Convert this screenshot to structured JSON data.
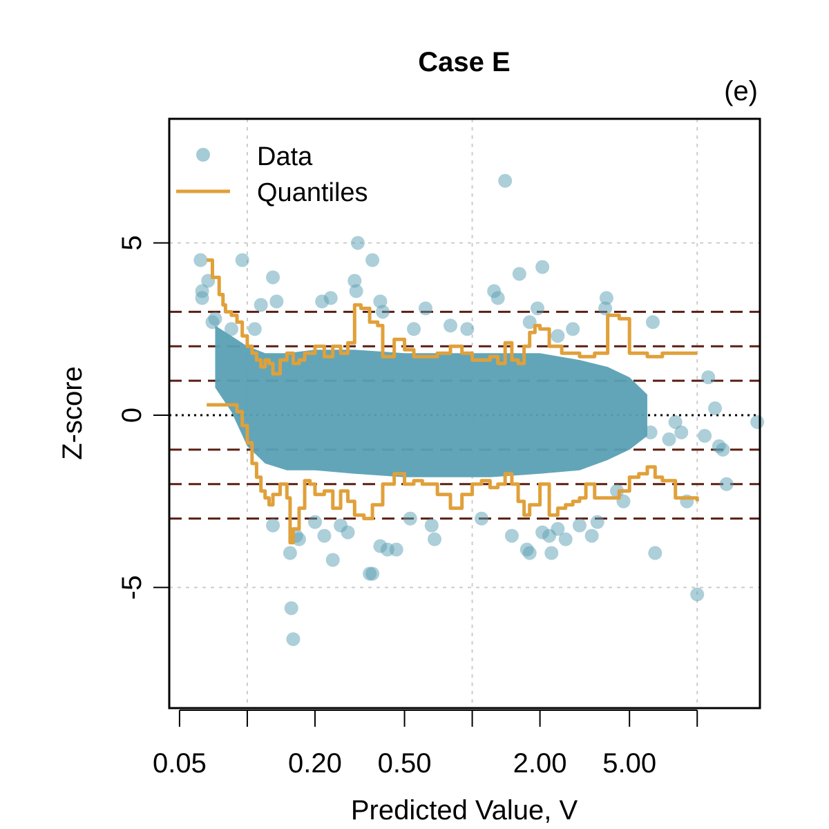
{
  "chart_data": {
    "type": "scatter",
    "title": "Case E",
    "panel_label": "(e)",
    "xlabel": "Predicted Value, V",
    "ylabel": "Z-score",
    "x_scale": "log",
    "xlim": [
      0.045,
      19
    ],
    "ylim": [
      -8.5,
      8.6
    ],
    "x_ticks": [
      {
        "value": 0.05,
        "label": "0.05"
      },
      {
        "value": 0.1,
        "label": ""
      },
      {
        "value": 0.2,
        "label": "0.20"
      },
      {
        "value": 0.5,
        "label": "0.50"
      },
      {
        "value": 1,
        "label": ""
      },
      {
        "value": 2,
        "label": "2.00"
      },
      {
        "value": 5,
        "label": "5.00"
      },
      {
        "value": 10,
        "label": ""
      }
    ],
    "y_ticks": [
      {
        "value": -5,
        "label": "-5"
      },
      {
        "value": 0,
        "label": "0"
      },
      {
        "value": 5,
        "label": "5"
      }
    ],
    "grid_x": [
      0.1,
      1,
      10
    ],
    "grid_y": [
      -5,
      5
    ],
    "reference_lines": {
      "zero_dotted": 0,
      "dashed": [
        -3,
        -2,
        -1,
        1,
        2,
        3
      ],
      "dashed_color": "#5a1e12"
    },
    "grid": true,
    "legend": {
      "position": "top-left",
      "entries": [
        {
          "label": "Data",
          "kind": "point",
          "color": "#5aa0b4"
        },
        {
          "label": "Quantiles",
          "kind": "line",
          "color": "#e0a03a"
        }
      ]
    },
    "colors": {
      "data": "#5aa0b4",
      "quantiles": "#e0a03a"
    },
    "series": [
      {
        "name": "Data",
        "kind": "points",
        "points": [
          [
            0.062,
            4.5
          ],
          [
            0.063,
            3.6
          ],
          [
            0.063,
            3.4
          ],
          [
            0.067,
            3.9
          ],
          [
            0.07,
            2.7
          ],
          [
            0.072,
            2.8
          ],
          [
            0.085,
            2.5
          ],
          [
            0.095,
            4.5
          ],
          [
            0.13,
            4.0
          ],
          [
            0.115,
            3.2
          ],
          [
            0.135,
            3.3
          ],
          [
            0.108,
            2.5
          ],
          [
            0.215,
            3.3
          ],
          [
            0.235,
            3.4
          ],
          [
            0.31,
            5.0
          ],
          [
            0.3,
            3.9
          ],
          [
            0.305,
            3.6
          ],
          [
            0.36,
            4.5
          ],
          [
            0.39,
            3.3
          ],
          [
            0.4,
            3.0
          ],
          [
            0.62,
            3.1
          ],
          [
            1.25,
            3.6
          ],
          [
            1.3,
            3.4
          ],
          [
            1.4,
            6.8
          ],
          [
            1.62,
            4.1
          ],
          [
            2.05,
            4.3
          ],
          [
            1.95,
            3.1
          ],
          [
            3.95,
            3.4
          ],
          [
            3.9,
            3.1
          ],
          [
            6.35,
            2.7
          ],
          [
            11.2,
            1.1
          ],
          [
            12.0,
            0.2
          ],
          [
            18.5,
            -0.2
          ],
          [
            13.0,
            -1.0
          ],
          [
            12.5,
            -0.9
          ],
          [
            10.8,
            -0.6
          ],
          [
            8.5,
            -0.5
          ],
          [
            8.0,
            -0.2
          ],
          [
            6.2,
            -0.5
          ],
          [
            7.5,
            -0.7
          ],
          [
            13.5,
            -2.0
          ],
          [
            0.13,
            -3.2
          ],
          [
            0.155,
            -4.0
          ],
          [
            0.157,
            -5.6
          ],
          [
            0.16,
            -6.5
          ],
          [
            0.17,
            -3.6
          ],
          [
            0.165,
            -3.5
          ],
          [
            0.2,
            -3.1
          ],
          [
            0.22,
            -3.5
          ],
          [
            0.24,
            -4.2
          ],
          [
            0.26,
            -3.2
          ],
          [
            0.28,
            -3.4
          ],
          [
            0.35,
            -4.6
          ],
          [
            0.36,
            -4.6
          ],
          [
            0.39,
            -3.8
          ],
          [
            0.42,
            -3.9
          ],
          [
            0.46,
            -3.9
          ],
          [
            0.53,
            -3.0
          ],
          [
            0.66,
            -3.2
          ],
          [
            0.68,
            -3.6
          ],
          [
            1.1,
            -3.0
          ],
          [
            1.5,
            -3.5
          ],
          [
            1.75,
            -3.9
          ],
          [
            1.8,
            -4.0
          ],
          [
            2.05,
            -3.4
          ],
          [
            2.2,
            -3.5
          ],
          [
            2.25,
            -4.0
          ],
          [
            2.4,
            -3.3
          ],
          [
            2.6,
            -3.6
          ],
          [
            3.0,
            -3.2
          ],
          [
            3.4,
            -3.5
          ],
          [
            3.6,
            -3.1
          ],
          [
            4.4,
            -2.2
          ],
          [
            4.7,
            -2.5
          ],
          [
            6.5,
            -4.0
          ],
          [
            9.0,
            -2.5
          ],
          [
            10.0,
            -5.2
          ],
          [
            2.4,
            2.3
          ],
          [
            2.8,
            2.5
          ],
          [
            1.8,
            2.7
          ],
          [
            0.95,
            2.5
          ],
          [
            0.8,
            2.6
          ],
          [
            0.55,
            2.5
          ]
        ]
      },
      {
        "name": "Quantiles",
        "kind": "step-lines",
        "color": "#e0a03a",
        "upper": [
          [
            0.066,
            4.5
          ],
          [
            0.07,
            4.0
          ],
          [
            0.072,
            4.0
          ],
          [
            0.075,
            3.5
          ],
          [
            0.078,
            3.2
          ],
          [
            0.08,
            3.0
          ],
          [
            0.085,
            2.9
          ],
          [
            0.09,
            2.7
          ],
          [
            0.095,
            2.3
          ],
          [
            0.1,
            2.0
          ],
          [
            0.105,
            1.8
          ],
          [
            0.11,
            1.6
          ],
          [
            0.115,
            1.4
          ],
          [
            0.12,
            1.6
          ],
          [
            0.125,
            1.5
          ],
          [
            0.13,
            1.2
          ],
          [
            0.14,
            1.6
          ],
          [
            0.15,
            1.8
          ],
          [
            0.16,
            1.5
          ],
          [
            0.17,
            1.6
          ],
          [
            0.18,
            1.8
          ],
          [
            0.2,
            2.0
          ],
          [
            0.22,
            1.7
          ],
          [
            0.24,
            2.0
          ],
          [
            0.26,
            1.8
          ],
          [
            0.28,
            2.1
          ],
          [
            0.3,
            3.2
          ],
          [
            0.32,
            3.1
          ],
          [
            0.35,
            2.7
          ],
          [
            0.38,
            2.6
          ],
          [
            0.4,
            1.7
          ],
          [
            0.45,
            2.2
          ],
          [
            0.5,
            1.9
          ],
          [
            0.55,
            1.7
          ],
          [
            0.6,
            1.7
          ],
          [
            0.7,
            1.8
          ],
          [
            0.8,
            2.0
          ],
          [
            0.9,
            1.8
          ],
          [
            1.0,
            1.6
          ],
          [
            1.1,
            1.6
          ],
          [
            1.2,
            1.7
          ],
          [
            1.3,
            1.5
          ],
          [
            1.4,
            2.1
          ],
          [
            1.5,
            1.6
          ],
          [
            1.6,
            1.5
          ],
          [
            1.7,
            2.0
          ],
          [
            1.8,
            2.4
          ],
          [
            1.9,
            2.6
          ],
          [
            2.0,
            2.5
          ],
          [
            2.2,
            2.0
          ],
          [
            2.5,
            1.8
          ],
          [
            3.0,
            1.7
          ],
          [
            3.5,
            1.8
          ],
          [
            4.0,
            2.9
          ],
          [
            4.5,
            2.8
          ],
          [
            5.0,
            1.8
          ],
          [
            5.5,
            1.8
          ],
          [
            6.0,
            1.7
          ],
          [
            7.0,
            1.8
          ],
          [
            8.0,
            1.8
          ],
          [
            10.0,
            1.8
          ]
        ],
        "lower": [
          [
            0.066,
            0.3
          ],
          [
            0.08,
            0.3
          ],
          [
            0.09,
            0.1
          ],
          [
            0.095,
            -0.3
          ],
          [
            0.1,
            -0.8
          ],
          [
            0.105,
            -1.4
          ],
          [
            0.11,
            -1.8
          ],
          [
            0.115,
            -2.2
          ],
          [
            0.12,
            -2.4
          ],
          [
            0.125,
            -2.6
          ],
          [
            0.13,
            -2.3
          ],
          [
            0.14,
            -2.0
          ],
          [
            0.15,
            -2.4
          ],
          [
            0.155,
            -3.7
          ],
          [
            0.16,
            -3.3
          ],
          [
            0.17,
            -2.7
          ],
          [
            0.18,
            -1.9
          ],
          [
            0.19,
            -2.0
          ],
          [
            0.2,
            -2.3
          ],
          [
            0.22,
            -2.2
          ],
          [
            0.24,
            -2.7
          ],
          [
            0.26,
            -2.2
          ],
          [
            0.28,
            -2.5
          ],
          [
            0.3,
            -2.9
          ],
          [
            0.33,
            -3.0
          ],
          [
            0.36,
            -2.6
          ],
          [
            0.4,
            -2.0
          ],
          [
            0.45,
            -1.7
          ],
          [
            0.5,
            -2.0
          ],
          [
            0.55,
            -1.9
          ],
          [
            0.6,
            -2.0
          ],
          [
            0.7,
            -2.3
          ],
          [
            0.8,
            -2.7
          ],
          [
            0.9,
            -2.3
          ],
          [
            1.0,
            -2.0
          ],
          [
            1.1,
            -1.9
          ],
          [
            1.2,
            -2.1
          ],
          [
            1.3,
            -2.0
          ],
          [
            1.4,
            -1.7
          ],
          [
            1.5,
            -2.0
          ],
          [
            1.6,
            -2.5
          ],
          [
            1.7,
            -2.9
          ],
          [
            1.8,
            -2.6
          ],
          [
            2.0,
            -2.0
          ],
          [
            2.2,
            -2.9
          ],
          [
            2.4,
            -2.7
          ],
          [
            2.6,
            -2.6
          ],
          [
            2.8,
            -2.5
          ],
          [
            3.0,
            -2.4
          ],
          [
            3.2,
            -2.0
          ],
          [
            3.5,
            -2.4
          ],
          [
            4.0,
            -2.4
          ],
          [
            4.5,
            -2.2
          ],
          [
            5.0,
            -1.8
          ],
          [
            5.5,
            -1.7
          ],
          [
            6.0,
            -1.5
          ],
          [
            6.5,
            -1.8
          ],
          [
            7.0,
            -1.9
          ],
          [
            8.0,
            -2.4
          ],
          [
            10.0,
            -2.5
          ]
        ]
      }
    ]
  }
}
